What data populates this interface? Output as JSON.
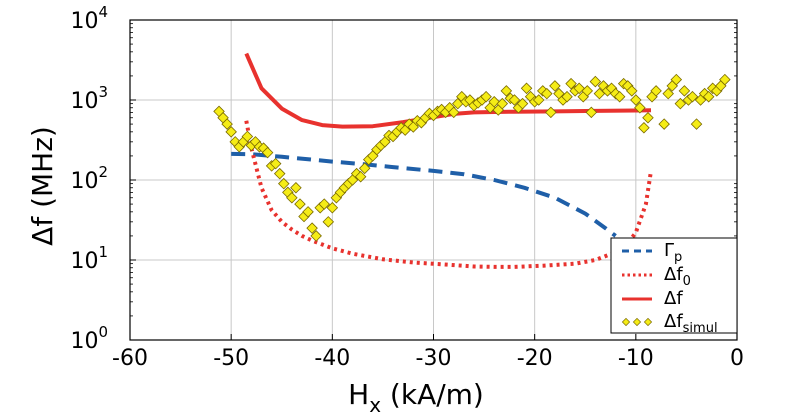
{
  "chart_data": {
    "type": "line",
    "xlabel_main": "H",
    "xlabel_sub": "x",
    "xlabel_rest": " (kA/m)",
    "ylabel": "Δf (MHz)",
    "xlim": [
      -60,
      0
    ],
    "ylim_log10": [
      0,
      4
    ],
    "log_y": true,
    "grid": true,
    "legend_position": "lower-right",
    "x_ticks": [
      {
        "value": -60,
        "label": "-60"
      },
      {
        "value": -50,
        "label": "-50"
      },
      {
        "value": -40,
        "label": "-40"
      },
      {
        "value": -30,
        "label": "-30"
      },
      {
        "value": -20,
        "label": "-20"
      },
      {
        "value": -10,
        "label": "-10"
      },
      {
        "value": 0,
        "label": "0"
      }
    ],
    "y_ticks": [
      {
        "value": 1,
        "base": "10",
        "exp": "0"
      },
      {
        "value": 10,
        "base": "10",
        "exp": "1"
      },
      {
        "value": 100,
        "base": "10",
        "exp": "2"
      },
      {
        "value": 1000,
        "base": "10",
        "exp": "3"
      },
      {
        "value": 10000,
        "base": "10",
        "exp": "4"
      }
    ],
    "series": [
      {
        "name": "Γ",
        "name_sub": "p",
        "color": "#1f5fa8",
        "style": "dashed",
        "x": [
          -50.0,
          -48.0,
          -45.0,
          -42.0,
          -40.0,
          -37.0,
          -34.0,
          -30.0,
          -27.0,
          -24.0,
          -21.0,
          -18.0,
          -15.0,
          -13.0,
          -12.0
        ],
        "y": [
          212,
          210,
          195,
          180,
          170,
          158,
          145,
          130,
          118,
          100,
          80,
          60,
          38,
          25,
          20
        ]
      },
      {
        "name": "Δf",
        "name_sub": "0",
        "color": "#e8322e",
        "style": "dotted",
        "x": [
          -48.5,
          -48.0,
          -47.0,
          -46.0,
          -45.0,
          -44.0,
          -43.0,
          -42.0,
          -40.0,
          -38.0,
          -35.0,
          -32.0,
          -29.0,
          -26.0,
          -24.0,
          -22.0,
          -19.0,
          -16.0,
          -14.0,
          -12.0,
          -11.0,
          -10.0,
          -9.0,
          -8.5
        ],
        "y": [
          550,
          250,
          80,
          42,
          30,
          24,
          20,
          17.5,
          14,
          12,
          10.2,
          9.3,
          8.8,
          8.3,
          8.2,
          8.2,
          8.5,
          9.0,
          10.0,
          12.5,
          15,
          22,
          50,
          130
        ]
      },
      {
        "name": "Δf",
        "name_sub": "",
        "color": "#e8322e",
        "style": "solid",
        "x": [
          -48.5,
          -47.0,
          -45.0,
          -43.0,
          -41.0,
          -39.0,
          -36.0,
          -33.0,
          -30.0,
          -28.0,
          -26.0,
          -22.0,
          -18.0,
          -14.0,
          -10.0,
          -8.5
        ],
        "y": [
          3800,
          1400,
          780,
          560,
          485,
          465,
          470,
          530,
          610,
          670,
          700,
          715,
          720,
          730,
          740,
          745
        ]
      },
      {
        "name": "Δf",
        "name_sub": "simul",
        "color": "#f5ec16",
        "edge": "#7a6a00",
        "style": "markers",
        "x": [
          -51.2,
          -50.8,
          -50.4,
          -50.0,
          -49.6,
          -49.2,
          -48.8,
          -48.4,
          -48.0,
          -47.6,
          -47.2,
          -46.8,
          -46.4,
          -46.0,
          -45.6,
          -45.2,
          -44.8,
          -44.4,
          -44.0,
          -43.6,
          -43.2,
          -42.8,
          -42.4,
          -42.0,
          -41.6,
          -41.2,
          -40.8,
          -40.4,
          -40.0,
          -39.6,
          -39.2,
          -38.8,
          -38.4,
          -38.0,
          -37.6,
          -37.2,
          -36.8,
          -36.4,
          -36.0,
          -35.6,
          -35.2,
          -34.8,
          -34.4,
          -34.0,
          -33.6,
          -33.2,
          -32.8,
          -32.4,
          -32.0,
          -31.6,
          -31.2,
          -30.8,
          -30.4,
          -30.0,
          -29.6,
          -29.2,
          -28.8,
          -28.4,
          -28.0,
          -27.6,
          -27.2,
          -26.8,
          -26.4,
          -26.0,
          -25.6,
          -25.2,
          -24.8,
          -24.4,
          -24.0,
          -23.6,
          -23.2,
          -22.8,
          -22.4,
          -22.0,
          -21.6,
          -21.2,
          -20.8,
          -20.4,
          -20.0,
          -19.6,
          -19.2,
          -18.8,
          -18.4,
          -18.0,
          -17.6,
          -17.2,
          -16.8,
          -16.4,
          -16.0,
          -15.6,
          -15.2,
          -14.8,
          -14.4,
          -14.0,
          -13.6,
          -13.2,
          -12.8,
          -12.4,
          -12.0,
          -11.6,
          -11.2,
          -10.8,
          -10.4,
          -10.0,
          -9.6,
          -9.2,
          -8.8,
          -8.4,
          -8.0,
          -7.2,
          -6.8,
          -6.4,
          -6.0,
          -5.6,
          -5.2,
          -4.8,
          -4.4,
          -4.0,
          -3.6,
          -3.2,
          -2.8,
          -2.4,
          -2.0,
          -1.6,
          -1.2
        ],
        "y": [
          720,
          600,
          500,
          400,
          300,
          260,
          300,
          350,
          270,
          300,
          260,
          250,
          220,
          150,
          160,
          120,
          90,
          70,
          60,
          80,
          50,
          35,
          40,
          25,
          20,
          45,
          50,
          30,
          45,
          60,
          70,
          80,
          90,
          100,
          120,
          110,
          140,
          180,
          200,
          240,
          270,
          300,
          360,
          350,
          400,
          450,
          420,
          500,
          460,
          550,
          520,
          600,
          680,
          640,
          720,
          760,
          700,
          800,
          700,
          900,
          1100,
          950,
          1000,
          850,
          920,
          1000,
          1100,
          800,
          950,
          750,
          900,
          1300,
          1050,
          1000,
          800,
          900,
          1400,
          1100,
          950,
          1000,
          1300,
          1200,
          700,
          1500,
          1200,
          1000,
          1100,
          1600,
          1300,
          1400,
          1100,
          1300,
          700,
          1700,
          1200,
          1500,
          1300,
          1400,
          1200,
          1100,
          1600,
          1500,
          1300,
          1000,
          800,
          450,
          600,
          1100,
          1300,
          500,
          1200,
          1500,
          1800,
          900,
          1300,
          1000,
          1100,
          500,
          1000,
          1200,
          1100,
          1400,
          1300,
          1500,
          1800
        ]
      }
    ]
  }
}
